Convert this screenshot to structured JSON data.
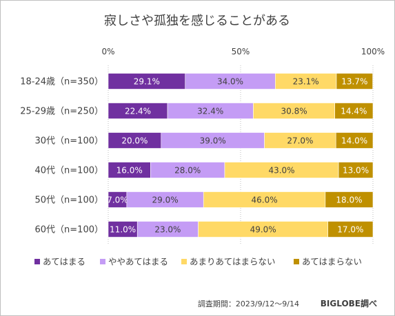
{
  "chart_data": {
    "type": "bar",
    "orientation": "horizontal",
    "stacked": true,
    "percent": true,
    "title": "寂しさや孤独を感じることがある",
    "categories": [
      "18-24歳（n=350）",
      "25-29歳（n=250）",
      "30代（n=100）",
      "40代（n=100）",
      "50代（n=100）",
      "60代（n=100）"
    ],
    "series": [
      {
        "name": "あてはまる",
        "color": "#7030a0",
        "values": [
          29.1,
          22.4,
          20.0,
          16.0,
          7.0,
          11.0
        ],
        "labels": [
          "29.1%",
          "22.4%",
          "20.0%",
          "16.0%",
          "7.0%",
          "11.0%"
        ]
      },
      {
        "name": "ややあてはまる",
        "color": "#c49cf5",
        "values": [
          34.0,
          32.4,
          39.0,
          28.0,
          29.0,
          23.0
        ],
        "labels": [
          "34.0%",
          "32.4%",
          "39.0%",
          "28.0%",
          "29.0%",
          "23.0%"
        ]
      },
      {
        "name": "あまりあてはまらない",
        "color": "#ffd966",
        "values": [
          23.1,
          30.8,
          27.0,
          43.0,
          46.0,
          49.0
        ],
        "labels": [
          "23.1%",
          "30.8%",
          "27.0%",
          "43.0%",
          "46.0%",
          "49.0%"
        ]
      },
      {
        "name": "あてはまらない",
        "color": "#bf9000",
        "values": [
          13.7,
          14.4,
          14.0,
          13.0,
          18.0,
          17.0
        ],
        "labels": [
          "13.7%",
          "14.4%",
          "14.0%",
          "13.0%",
          "18.0%",
          "17.0%"
        ]
      }
    ],
    "xlim": [
      0,
      100
    ],
    "xticks": [
      0,
      50,
      100
    ],
    "xtick_labels": [
      "0%",
      "50%",
      "100%"
    ],
    "legend_position": "bottom",
    "gridlines": "dotted vertical at 0/50/100"
  },
  "footer": {
    "survey_period": "調査期間：2023/9/12～9/14",
    "source": "BIGLOBE調べ"
  }
}
